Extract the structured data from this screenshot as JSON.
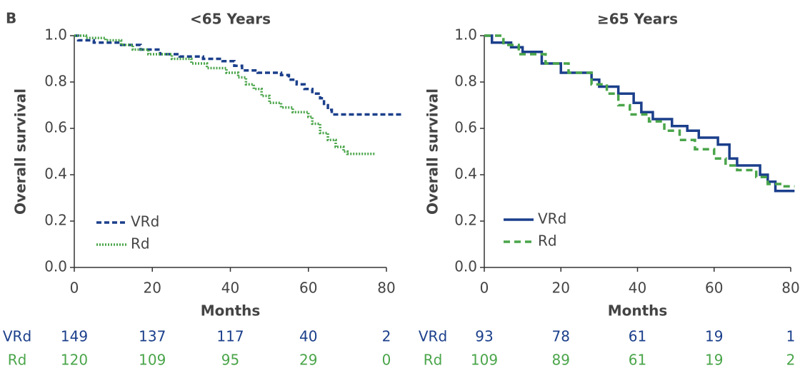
{
  "panel_label": "B",
  "chart_data": [
    {
      "type": "line",
      "step": true,
      "title": "<65 Years",
      "x_label": "Months",
      "y_label": "Overall survival",
      "xlim": [
        0,
        80
      ],
      "xticks": [
        0,
        20,
        40,
        60,
        80
      ],
      "ylim": [
        0,
        1
      ],
      "yticks": [
        {
          "value": 0,
          "label": "0.0"
        },
        {
          "value": 0.2,
          "label": "0.2"
        },
        {
          "value": 0.4,
          "label": "0.4"
        },
        {
          "value": 0.6,
          "label": "0.6"
        },
        {
          "value": 0.8,
          "label": "0.8"
        },
        {
          "value": 1,
          "label": "1.0"
        }
      ],
      "series": [
        {
          "name": "VRd",
          "color": "#1b3f8b",
          "dash": "7 4",
          "x": [
            0,
            1,
            5,
            12,
            17,
            22,
            27,
            33,
            38,
            41,
            43,
            47,
            53,
            55,
            57,
            59,
            61,
            63,
            64,
            65,
            66,
            84
          ],
          "values": [
            1.0,
            0.98,
            0.97,
            0.96,
            0.94,
            0.92,
            0.91,
            0.9,
            0.89,
            0.87,
            0.85,
            0.84,
            0.83,
            0.81,
            0.79,
            0.77,
            0.75,
            0.73,
            0.7,
            0.68,
            0.66,
            0.66
          ]
        },
        {
          "name": "Rd",
          "color": "#4aa54a",
          "dash": "2 2",
          "x": [
            0,
            3,
            8,
            12,
            15,
            19,
            25,
            30,
            34,
            39,
            42,
            44,
            46,
            48,
            50,
            53,
            56,
            60,
            61,
            63,
            65,
            67,
            69,
            70,
            77
          ],
          "values": [
            1.0,
            0.99,
            0.98,
            0.96,
            0.94,
            0.92,
            0.9,
            0.88,
            0.86,
            0.84,
            0.82,
            0.79,
            0.77,
            0.74,
            0.71,
            0.69,
            0.67,
            0.65,
            0.62,
            0.58,
            0.55,
            0.52,
            0.5,
            0.49,
            0.49
          ]
        }
      ],
      "at_risk": [
        {
          "name": "VRd",
          "color": "#1b3f8b",
          "values": [
            149,
            137,
            117,
            40,
            2
          ]
        },
        {
          "name": "Rd",
          "color": "#4aa54a",
          "values": [
            120,
            109,
            95,
            29,
            0
          ]
        }
      ]
    },
    {
      "type": "line",
      "step": true,
      "title": "≥65 Years",
      "x_label": "Months",
      "y_label": "Overall survival",
      "xlim": [
        0,
        80
      ],
      "xticks": [
        0,
        20,
        40,
        60,
        80
      ],
      "ylim": [
        0,
        1
      ],
      "yticks": [
        {
          "value": 0,
          "label": "0.0"
        },
        {
          "value": 0.2,
          "label": "0.2"
        },
        {
          "value": 0.4,
          "label": "0.4"
        },
        {
          "value": 0.6,
          "label": "0.6"
        },
        {
          "value": 0.8,
          "label": "0.8"
        },
        {
          "value": 1,
          "label": "1.0"
        }
      ],
      "series": [
        {
          "name": "VRd",
          "color": "#1b3f8b",
          "dash": "none",
          "x": [
            0,
            2,
            7,
            10,
            15,
            20,
            28,
            30,
            35,
            39,
            41,
            44,
            49,
            53,
            56,
            61,
            64,
            66,
            72,
            74,
            76,
            81
          ],
          "values": [
            1.0,
            0.97,
            0.95,
            0.93,
            0.88,
            0.84,
            0.81,
            0.78,
            0.75,
            0.71,
            0.67,
            0.64,
            0.61,
            0.59,
            0.56,
            0.53,
            0.47,
            0.44,
            0.4,
            0.37,
            0.33,
            0.33
          ]
        },
        {
          "name": "Rd",
          "color": "#4aa54a",
          "dash": "9 6",
          "x": [
            0,
            5,
            9,
            16,
            22,
            28,
            32,
            35,
            38,
            43,
            47,
            51,
            55,
            60,
            63,
            66,
            71,
            74,
            78,
            81
          ],
          "values": [
            1.0,
            0.96,
            0.92,
            0.88,
            0.84,
            0.79,
            0.75,
            0.7,
            0.66,
            0.63,
            0.59,
            0.55,
            0.51,
            0.47,
            0.44,
            0.42,
            0.39,
            0.36,
            0.35,
            0.35
          ]
        }
      ],
      "at_risk": [
        {
          "name": "VRd",
          "color": "#1b3f8b",
          "values": [
            93,
            78,
            61,
            19,
            1
          ]
        },
        {
          "name": "Rd",
          "color": "#4aa54a",
          "values": [
            109,
            89,
            61,
            19,
            2
          ]
        }
      ]
    }
  ]
}
